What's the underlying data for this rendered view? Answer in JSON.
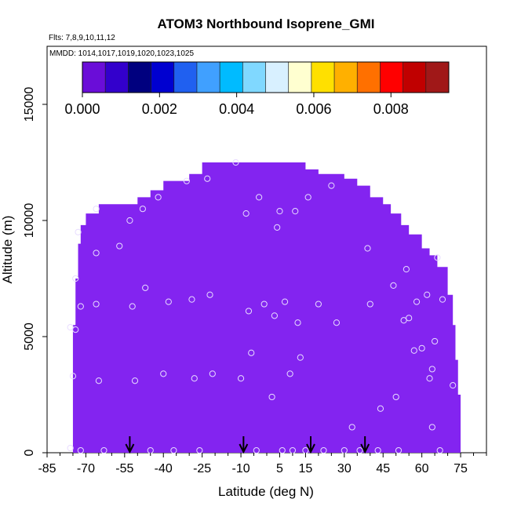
{
  "chart_data": {
    "type": "heatmap",
    "title": "ATOM3 Northbound Isoprene_GMI",
    "subtitle_flights": "Flts: 7,8,9,10,11,12",
    "subtitle_dates": "MMDD: 1014,1017,1019,1020,1023,1025",
    "xlabel": "Latitude (deg N)",
    "ylabel": "Altitude (m)",
    "xlim": [
      -85,
      85
    ],
    "ylim": [
      0,
      17500
    ],
    "x_ticks": [
      -85,
      -70,
      -55,
      -40,
      -25,
      -10,
      5,
      15,
      30,
      45,
      60,
      75
    ],
    "x_ticks_labels": [
      "-85",
      "-70",
      "-55",
      "-40",
      "-25",
      "-10",
      "5",
      "15",
      "30",
      "45",
      "60",
      "75"
    ],
    "y_ticks": [
      0,
      5000,
      10000,
      15000
    ],
    "y_ticks_labels": [
      "0",
      "5000",
      "10000",
      "15000"
    ],
    "colorbar": {
      "min": 0.0,
      "max": 0.0095,
      "ticks": [
        0.0,
        0.002,
        0.004,
        0.006,
        0.008
      ],
      "tick_labels": [
        "0.000",
        "0.002",
        "0.004",
        "0.006",
        "0.008"
      ],
      "colors": [
        "#6a0dd8",
        "#3300cc",
        "#00007f",
        "#0000d0",
        "#2060f0",
        "#40a0ff",
        "#00bbff",
        "#80d8ff",
        "#d8f0ff",
        "#ffffd0",
        "#ffe000",
        "#ffb000",
        "#ff7000",
        "#ff0000",
        "#c00000",
        "#a01818"
      ]
    },
    "field_color": "#8324f0",
    "field_value": 0.0,
    "field_envelope": [
      {
        "lat": -75,
        "alt_top": 5500
      },
      {
        "lat": -74,
        "alt_top": 7500
      },
      {
        "lat": -73,
        "alt_top": 9000
      },
      {
        "lat": -72,
        "alt_top": 9800
      },
      {
        "lat": -70,
        "alt_top": 10300
      },
      {
        "lat": -65,
        "alt_top": 10700
      },
      {
        "lat": -50,
        "alt_top": 11000
      },
      {
        "lat": -45,
        "alt_top": 11300
      },
      {
        "lat": -40,
        "alt_top": 11700
      },
      {
        "lat": -30,
        "alt_top": 12000
      },
      {
        "lat": -25,
        "alt_top": 12500
      },
      {
        "lat": 10,
        "alt_top": 12500
      },
      {
        "lat": 15,
        "alt_top": 12200
      },
      {
        "lat": 20,
        "alt_top": 12000
      },
      {
        "lat": 30,
        "alt_top": 11800
      },
      {
        "lat": 35,
        "alt_top": 11500
      },
      {
        "lat": 40,
        "alt_top": 11000
      },
      {
        "lat": 45,
        "alt_top": 10700
      },
      {
        "lat": 48,
        "alt_top": 10300
      },
      {
        "lat": 52,
        "alt_top": 9800
      },
      {
        "lat": 55,
        "alt_top": 9400
      },
      {
        "lat": 60,
        "alt_top": 8800
      },
      {
        "lat": 63,
        "alt_top": 8500
      },
      {
        "lat": 66,
        "alt_top": 8000
      },
      {
        "lat": 70,
        "alt_top": 6800
      },
      {
        "lat": 72,
        "alt_top": 5500
      },
      {
        "lat": 73,
        "alt_top": 4000
      },
      {
        "lat": 74,
        "alt_top": 2500
      }
    ],
    "observations": [
      [
        -76,
        5400
      ],
      [
        -74,
        7500
      ],
      [
        -73,
        9500
      ],
      [
        -72,
        6300
      ],
      [
        -75,
        3300
      ],
      [
        -76,
        200
      ],
      [
        -72,
        100
      ],
      [
        -66,
        10500
      ],
      [
        -66,
        8600
      ],
      [
        -66,
        6400
      ],
      [
        -65,
        3100
      ],
      [
        -63,
        100
      ],
      [
        -57,
        8900
      ],
      [
        -53,
        10000
      ],
      [
        -52,
        6300
      ],
      [
        -51,
        3100
      ],
      [
        -48,
        10500
      ],
      [
        -47,
        7100
      ],
      [
        -45,
        100
      ],
      [
        -42,
        11000
      ],
      [
        -40,
        3400
      ],
      [
        -38,
        6500
      ],
      [
        -36,
        100
      ],
      [
        -31,
        11700
      ],
      [
        -29,
        6600
      ],
      [
        -28,
        3200
      ],
      [
        -26,
        100
      ],
      [
        -23,
        11800
      ],
      [
        -22,
        6800
      ],
      [
        -21,
        3400
      ],
      [
        -12,
        12500
      ],
      [
        -10,
        3200
      ],
      [
        -8,
        10300
      ],
      [
        -7,
        6100
      ],
      [
        -6,
        4300
      ],
      [
        -4,
        100
      ],
      [
        -3,
        11000
      ],
      [
        -1,
        6400
      ],
      [
        2,
        2400
      ],
      [
        3,
        5900
      ],
      [
        4,
        9700
      ],
      [
        5,
        10400
      ],
      [
        6,
        100
      ],
      [
        7,
        6500
      ],
      [
        9,
        3400
      ],
      [
        10,
        100
      ],
      [
        11,
        10400
      ],
      [
        12,
        5600
      ],
      [
        13,
        4100
      ],
      [
        15,
        100
      ],
      [
        16,
        11000
      ],
      [
        20,
        6400
      ],
      [
        22,
        100
      ],
      [
        25,
        11500
      ],
      [
        27,
        5600
      ],
      [
        30,
        100
      ],
      [
        33,
        1100
      ],
      [
        36,
        100
      ],
      [
        39,
        8800
      ],
      [
        40,
        6400
      ],
      [
        43,
        100
      ],
      [
        44,
        1900
      ],
      [
        49,
        7200
      ],
      [
        50,
        2400
      ],
      [
        51,
        100
      ],
      [
        53,
        5700
      ],
      [
        54,
        7900
      ],
      [
        55,
        5800
      ],
      [
        57,
        4400
      ],
      [
        58,
        6500
      ],
      [
        60,
        4500
      ],
      [
        62,
        6800
      ],
      [
        63,
        3200
      ],
      [
        64,
        1100
      ],
      [
        64,
        3600
      ],
      [
        65,
        4800
      ],
      [
        66,
        8400
      ],
      [
        67,
        100
      ],
      [
        68,
        6600
      ],
      [
        72,
        2900
      ],
      [
        -74,
        5300
      ]
    ],
    "arrows_lat": [
      -53,
      -9,
      17,
      38
    ],
    "top_marker_lat": -13,
    "grid": false,
    "legend": "colorbar-top"
  }
}
